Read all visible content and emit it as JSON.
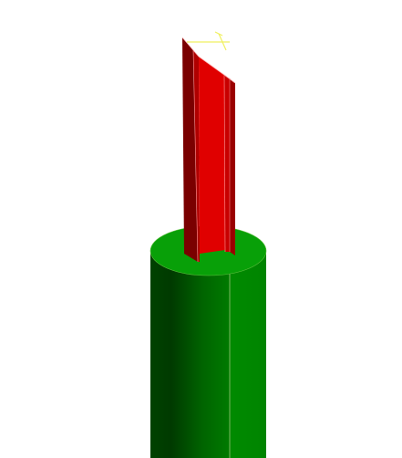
{
  "viewport": {
    "background_color": "#ffffff"
  },
  "model": {
    "pier": {
      "type": "cylinder",
      "top_color": "#0a9a0a",
      "side_light_color": "#0a8a0a",
      "side_dark_color": "#004a00",
      "edge_color": "#c8e0a0"
    },
    "column": {
      "type": "i-beam",
      "web_color": "#e00000",
      "flange_light_color": "#cc0000",
      "flange_dark_color": "#7a0000",
      "edge_color": "#ffc8c8"
    },
    "axis_indicator": {
      "color": "#f0f060",
      "icon": "axis-triad-icon"
    }
  }
}
